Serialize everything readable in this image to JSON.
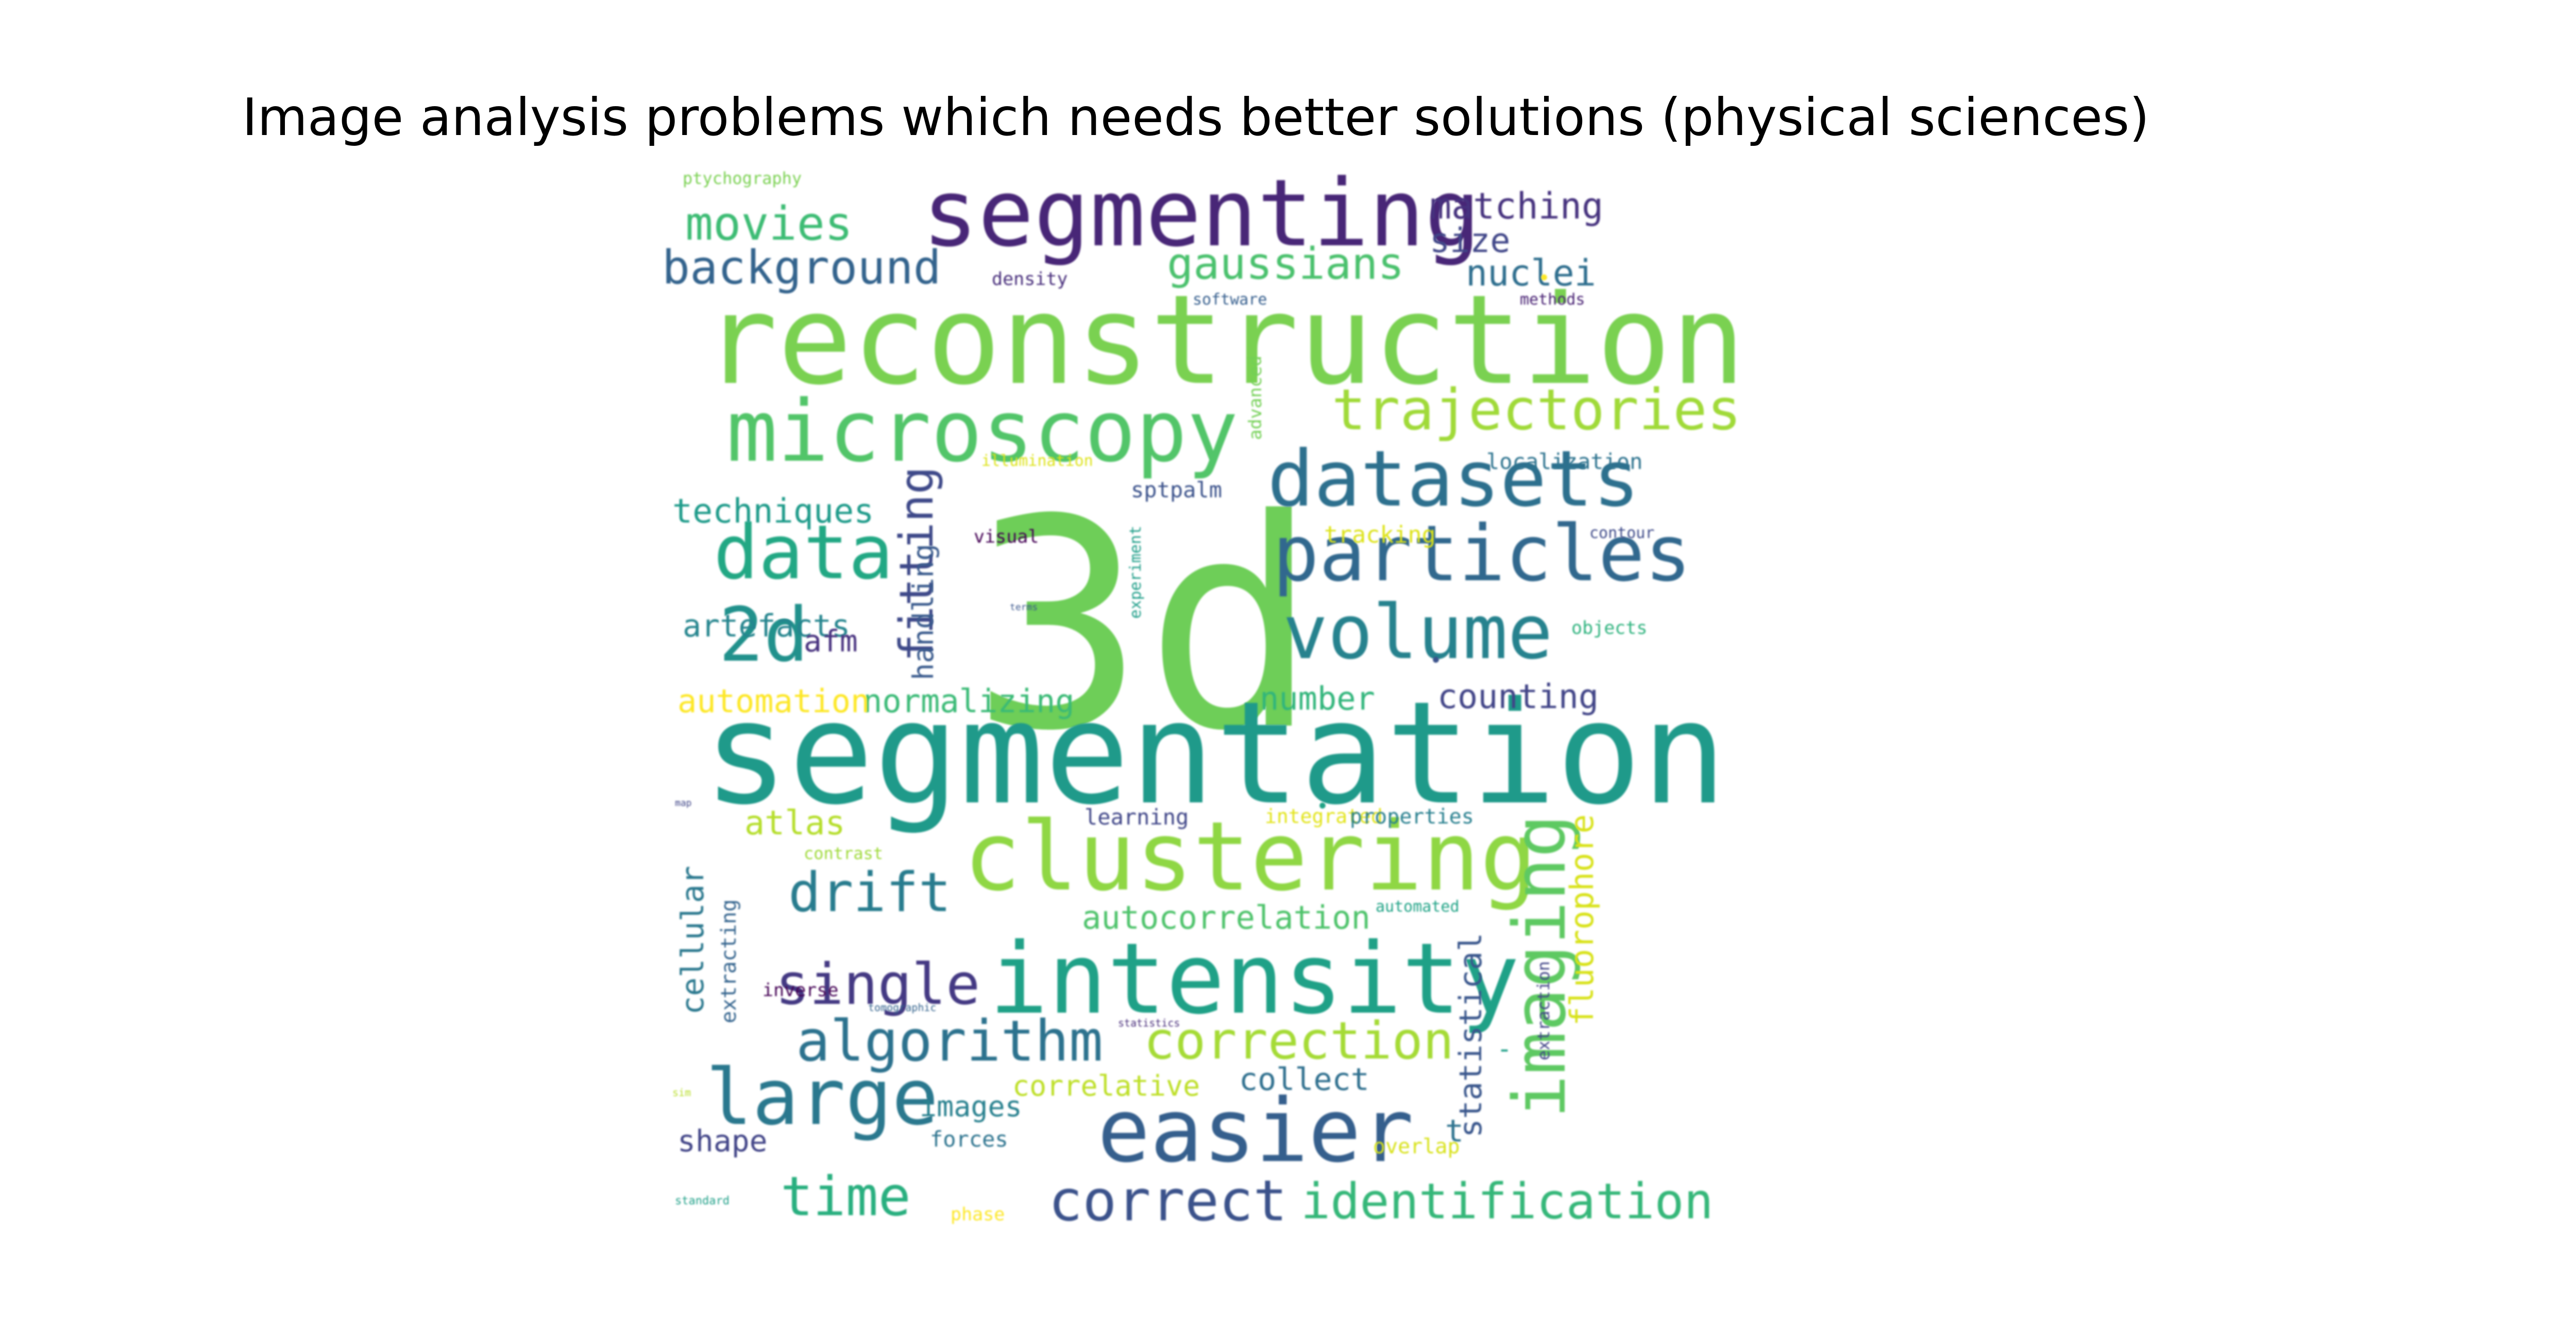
{
  "title": "Image analysis problems which needs better solutions (physical sciences)",
  "words": [
    {
      "text": "3d",
      "color": "#6ece58"
    },
    {
      "text": "segmentation",
      "color": "#1f9a8a"
    },
    {
      "text": "reconstruction",
      "color": "#7ad151"
    },
    {
      "text": "segmenting",
      "color": "#482677"
    },
    {
      "text": "clustering",
      "color": "#8fd744"
    },
    {
      "text": "intensity",
      "color": "#1fa187"
    },
    {
      "text": "easier",
      "color": "#355f8d"
    },
    {
      "text": "microscopy",
      "color": "#52c569"
    },
    {
      "text": "particles",
      "color": "#31688e"
    },
    {
      "text": "datasets",
      "color": "#2d708e"
    },
    {
      "text": "volume",
      "color": "#26828e"
    },
    {
      "text": "imaging",
      "color": "#5ec962"
    },
    {
      "text": "data",
      "color": "#22a884"
    },
    {
      "text": "large",
      "color": "#2a788e"
    },
    {
      "text": "2d",
      "color": "#21918c"
    },
    {
      "text": "trajectories",
      "color": "#a0da39"
    },
    {
      "text": "algorithm",
      "color": "#2c728e"
    },
    {
      "text": "correction",
      "color": "#a5db36"
    },
    {
      "text": "correct",
      "color": "#3b528b"
    },
    {
      "text": "identification",
      "color": "#35b779"
    },
    {
      "text": "time",
      "color": "#29af7f"
    },
    {
      "text": "single",
      "color": "#443983"
    },
    {
      "text": "drift",
      "color": "#287c8e"
    },
    {
      "text": "fitting",
      "color": "#3e4989"
    },
    {
      "text": "movies",
      "color": "#3dbc74"
    },
    {
      "text": "background",
      "color": "#33638d"
    },
    {
      "text": "gaussians",
      "color": "#4ac16d"
    },
    {
      "text": "matching",
      "color": "#46327e"
    },
    {
      "text": "size",
      "color": "#404688"
    },
    {
      "text": "nuclei",
      "color": "#2e6e8e"
    },
    {
      "text": "autocorrelation",
      "color": "#4ec36b"
    },
    {
      "text": "fluorophore",
      "color": "#d8e219"
    },
    {
      "text": "statistical",
      "color": "#39568c"
    },
    {
      "text": "cellular",
      "color": "#2a788e"
    },
    {
      "text": "normalizing",
      "color": "#3aba76"
    },
    {
      "text": "counting",
      "color": "#414487"
    },
    {
      "text": "automation",
      "color": "#fde725"
    },
    {
      "text": "number",
      "color": "#31b57b"
    },
    {
      "text": "artefacts",
      "color": "#25858e"
    },
    {
      "text": "techniques",
      "color": "#1e9b8a"
    },
    {
      "text": "handling",
      "color": "#38598c"
    },
    {
      "text": "afm",
      "color": "#46307e"
    },
    {
      "text": "atlas",
      "color": "#b5de2b"
    },
    {
      "text": "images",
      "color": "#27808e"
    },
    {
      "text": "shape",
      "color": "#414487"
    },
    {
      "text": "collect",
      "color": "#2e6f8e"
    },
    {
      "text": "correlative",
      "color": "#bddf26"
    },
    {
      "text": "localization",
      "color": "#2c728e"
    },
    {
      "text": "density",
      "color": "#472d7b"
    },
    {
      "text": "software",
      "color": "#355e8d"
    },
    {
      "text": "methods",
      "color": "#482173"
    },
    {
      "text": "ptychography",
      "color": "#7ad151"
    },
    {
      "text": "illumination",
      "color": "#dde318"
    },
    {
      "text": "sptpalm",
      "color": "#3b528b"
    },
    {
      "text": "tracking",
      "color": "#dde318"
    },
    {
      "text": "visual",
      "color": "#440154"
    },
    {
      "text": "contour",
      "color": "#3e4a89"
    },
    {
      "text": "objects",
      "color": "#2db27d"
    },
    {
      "text": "experiment",
      "color": "#1f9e89"
    },
    {
      "text": "advanced",
      "color": "#73d055"
    },
    {
      "text": "terms",
      "color": "#39568c"
    },
    {
      "text": "learning",
      "color": "#404688"
    },
    {
      "text": "integrated",
      "color": "#e2e418"
    },
    {
      "text": "properties",
      "color": "#277f8e"
    },
    {
      "text": "contrast",
      "color": "#9fda3a"
    },
    {
      "text": "automated",
      "color": "#20a386"
    },
    {
      "text": "extraction",
      "color": "#414487"
    },
    {
      "text": "extracting",
      "color": "#33638d"
    },
    {
      "text": "inverse",
      "color": "#440154"
    },
    {
      "text": "tomographic",
      "color": "#33638d"
    },
    {
      "text": "statistics",
      "color": "#472c7a"
    },
    {
      "text": "forces",
      "color": "#2c738e"
    },
    {
      "text": "overlap",
      "color": "#d8e219"
    },
    {
      "text": "phase",
      "color": "#fde725"
    },
    {
      "text": "standard",
      "color": "#1fa088"
    },
    {
      "text": "map",
      "color": "#404688"
    },
    {
      "text": "sim",
      "color": "#b8de29"
    },
    {
      "text": "•",
      "color": "#3b528b"
    },
    {
      "text": "•",
      "color": "#20a386"
    },
    {
      "text": "•",
      "color": "#fde725"
    },
    {
      "text": "t",
      "color": "#2c728e"
    },
    {
      "text": "-",
      "color": "#1fa088"
    }
  ]
}
